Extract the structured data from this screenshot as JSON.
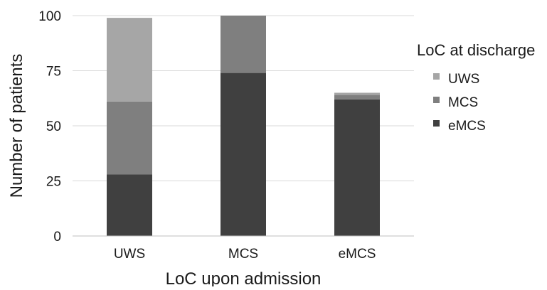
{
  "chart_data": {
    "type": "bar",
    "stacked": true,
    "title": "",
    "xlabel": "LoC upon admission",
    "ylabel": "Number of patients",
    "categories": [
      "UWS",
      "MCS",
      "eMCS"
    ],
    "ylim": [
      0,
      100
    ],
    "yticks": [
      0,
      25,
      50,
      75,
      100
    ],
    "grid": true,
    "legend": {
      "title": "LoC at discharge",
      "position": "right",
      "entries": [
        "UWS",
        "MCS",
        "eMCS"
      ]
    },
    "series": [
      {
        "name": "eMCS",
        "color": "#404040",
        "values": [
          28,
          74,
          62
        ]
      },
      {
        "name": "MCS",
        "color": "#7f7f7f",
        "values": [
          33,
          26,
          2
        ]
      },
      {
        "name": "UWS",
        "color": "#a6a6a6",
        "values": [
          38,
          0,
          1
        ]
      }
    ]
  }
}
